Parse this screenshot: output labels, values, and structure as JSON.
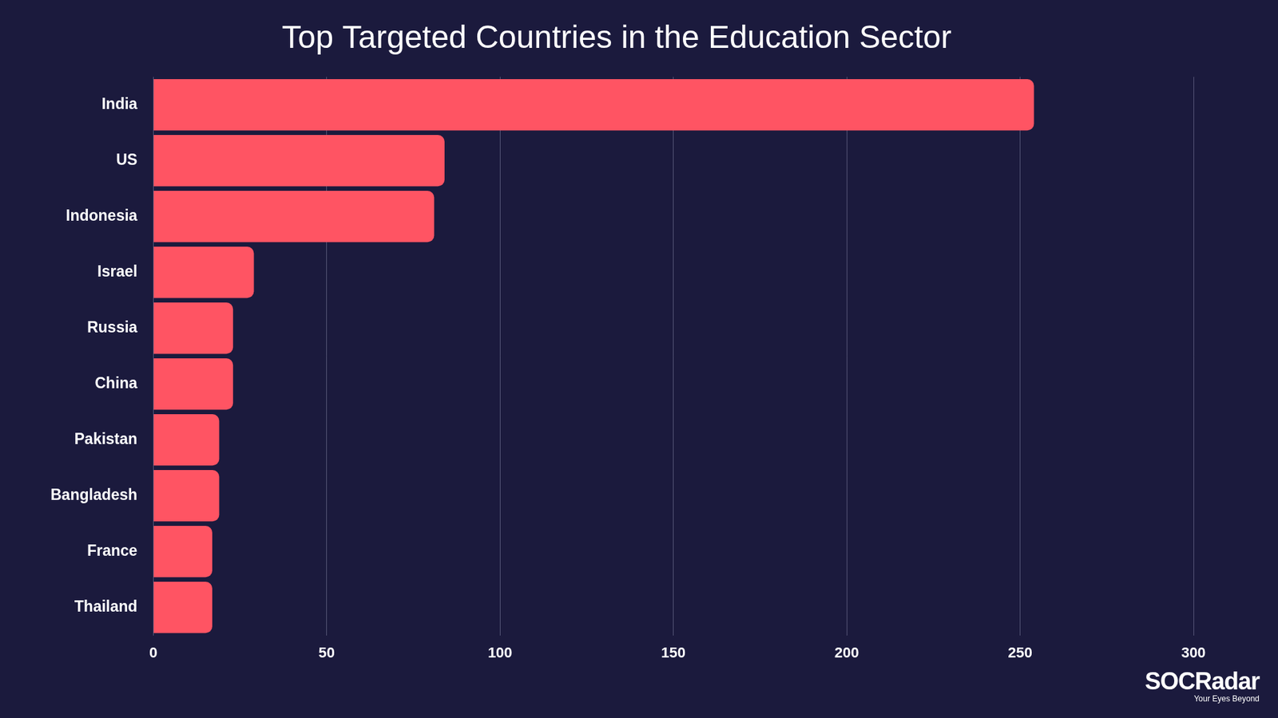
{
  "chart_data": {
    "type": "bar",
    "title": "Top Targeted Countries in the Education Sector",
    "orientation": "horizontal",
    "categories": [
      "India",
      "US",
      "Indonesia",
      "Israel",
      "Russia",
      "China",
      "Pakistan",
      "Bangladesh",
      "France",
      "Thailand"
    ],
    "values": [
      254,
      84,
      81,
      29,
      23,
      23,
      19,
      19,
      17,
      17
    ],
    "color": "#ff5463",
    "xlim": [
      0,
      300
    ],
    "xticks": [
      0,
      50,
      100,
      150,
      200,
      250,
      300
    ],
    "grid": true,
    "annotations": [
      "SOCRadar",
      "Your Eyes Beyond"
    ]
  }
}
